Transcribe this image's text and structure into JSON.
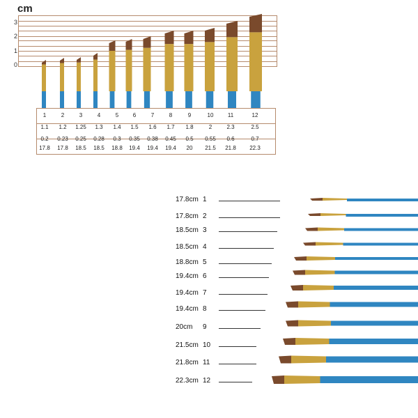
{
  "ruler": {
    "unit": "cm",
    "y_labels": [
      "3",
      "2",
      "1",
      "0"
    ]
  },
  "table": {
    "rows": [
      [
        "1",
        "2",
        "3",
        "4",
        "5",
        "6",
        "7",
        "8",
        "9",
        "10",
        "11",
        "12"
      ],
      [
        "1.1",
        "1.2",
        "1.25",
        "1.3",
        "1.4",
        "1.5",
        "1.6",
        "1.7",
        "1.8",
        "2",
        "2.3",
        "2.5"
      ],
      [
        "0.2",
        "0.23",
        "0.25",
        "0.28",
        "0.3",
        "0.35",
        "0.38",
        "0.45",
        "0.5",
        "0.55",
        "0.6",
        "0.7"
      ],
      [
        "17.8",
        "17.8",
        "18.5",
        "18.5",
        "18.8",
        "19.4",
        "19.4",
        "19.4",
        "20",
        "21.5",
        "21.8",
        "22.3"
      ]
    ]
  },
  "list": {
    "items": [
      {
        "length": "17.8cm",
        "num": "1"
      },
      {
        "length": "17.8cm",
        "num": "2"
      },
      {
        "length": "18.5cm",
        "num": "3"
      },
      {
        "length": "18.5cm",
        "num": "4"
      },
      {
        "length": "18.8cm",
        "num": "5"
      },
      {
        "length": "19.4cm",
        "num": "6"
      },
      {
        "length": "19.4cm",
        "num": "7"
      },
      {
        "length": "19.4cm",
        "num": "8"
      },
      {
        "length": "20cm",
        "num": "9"
      },
      {
        "length": "21.5cm",
        "num": "10"
      },
      {
        "length": "21.8cm",
        "num": "11"
      },
      {
        "length": "22.3cm",
        "num": "12"
      }
    ]
  },
  "colors": {
    "handle": "#2f86c1",
    "ferrule": "#c9a23e",
    "bristle": "#7a4a2c"
  }
}
